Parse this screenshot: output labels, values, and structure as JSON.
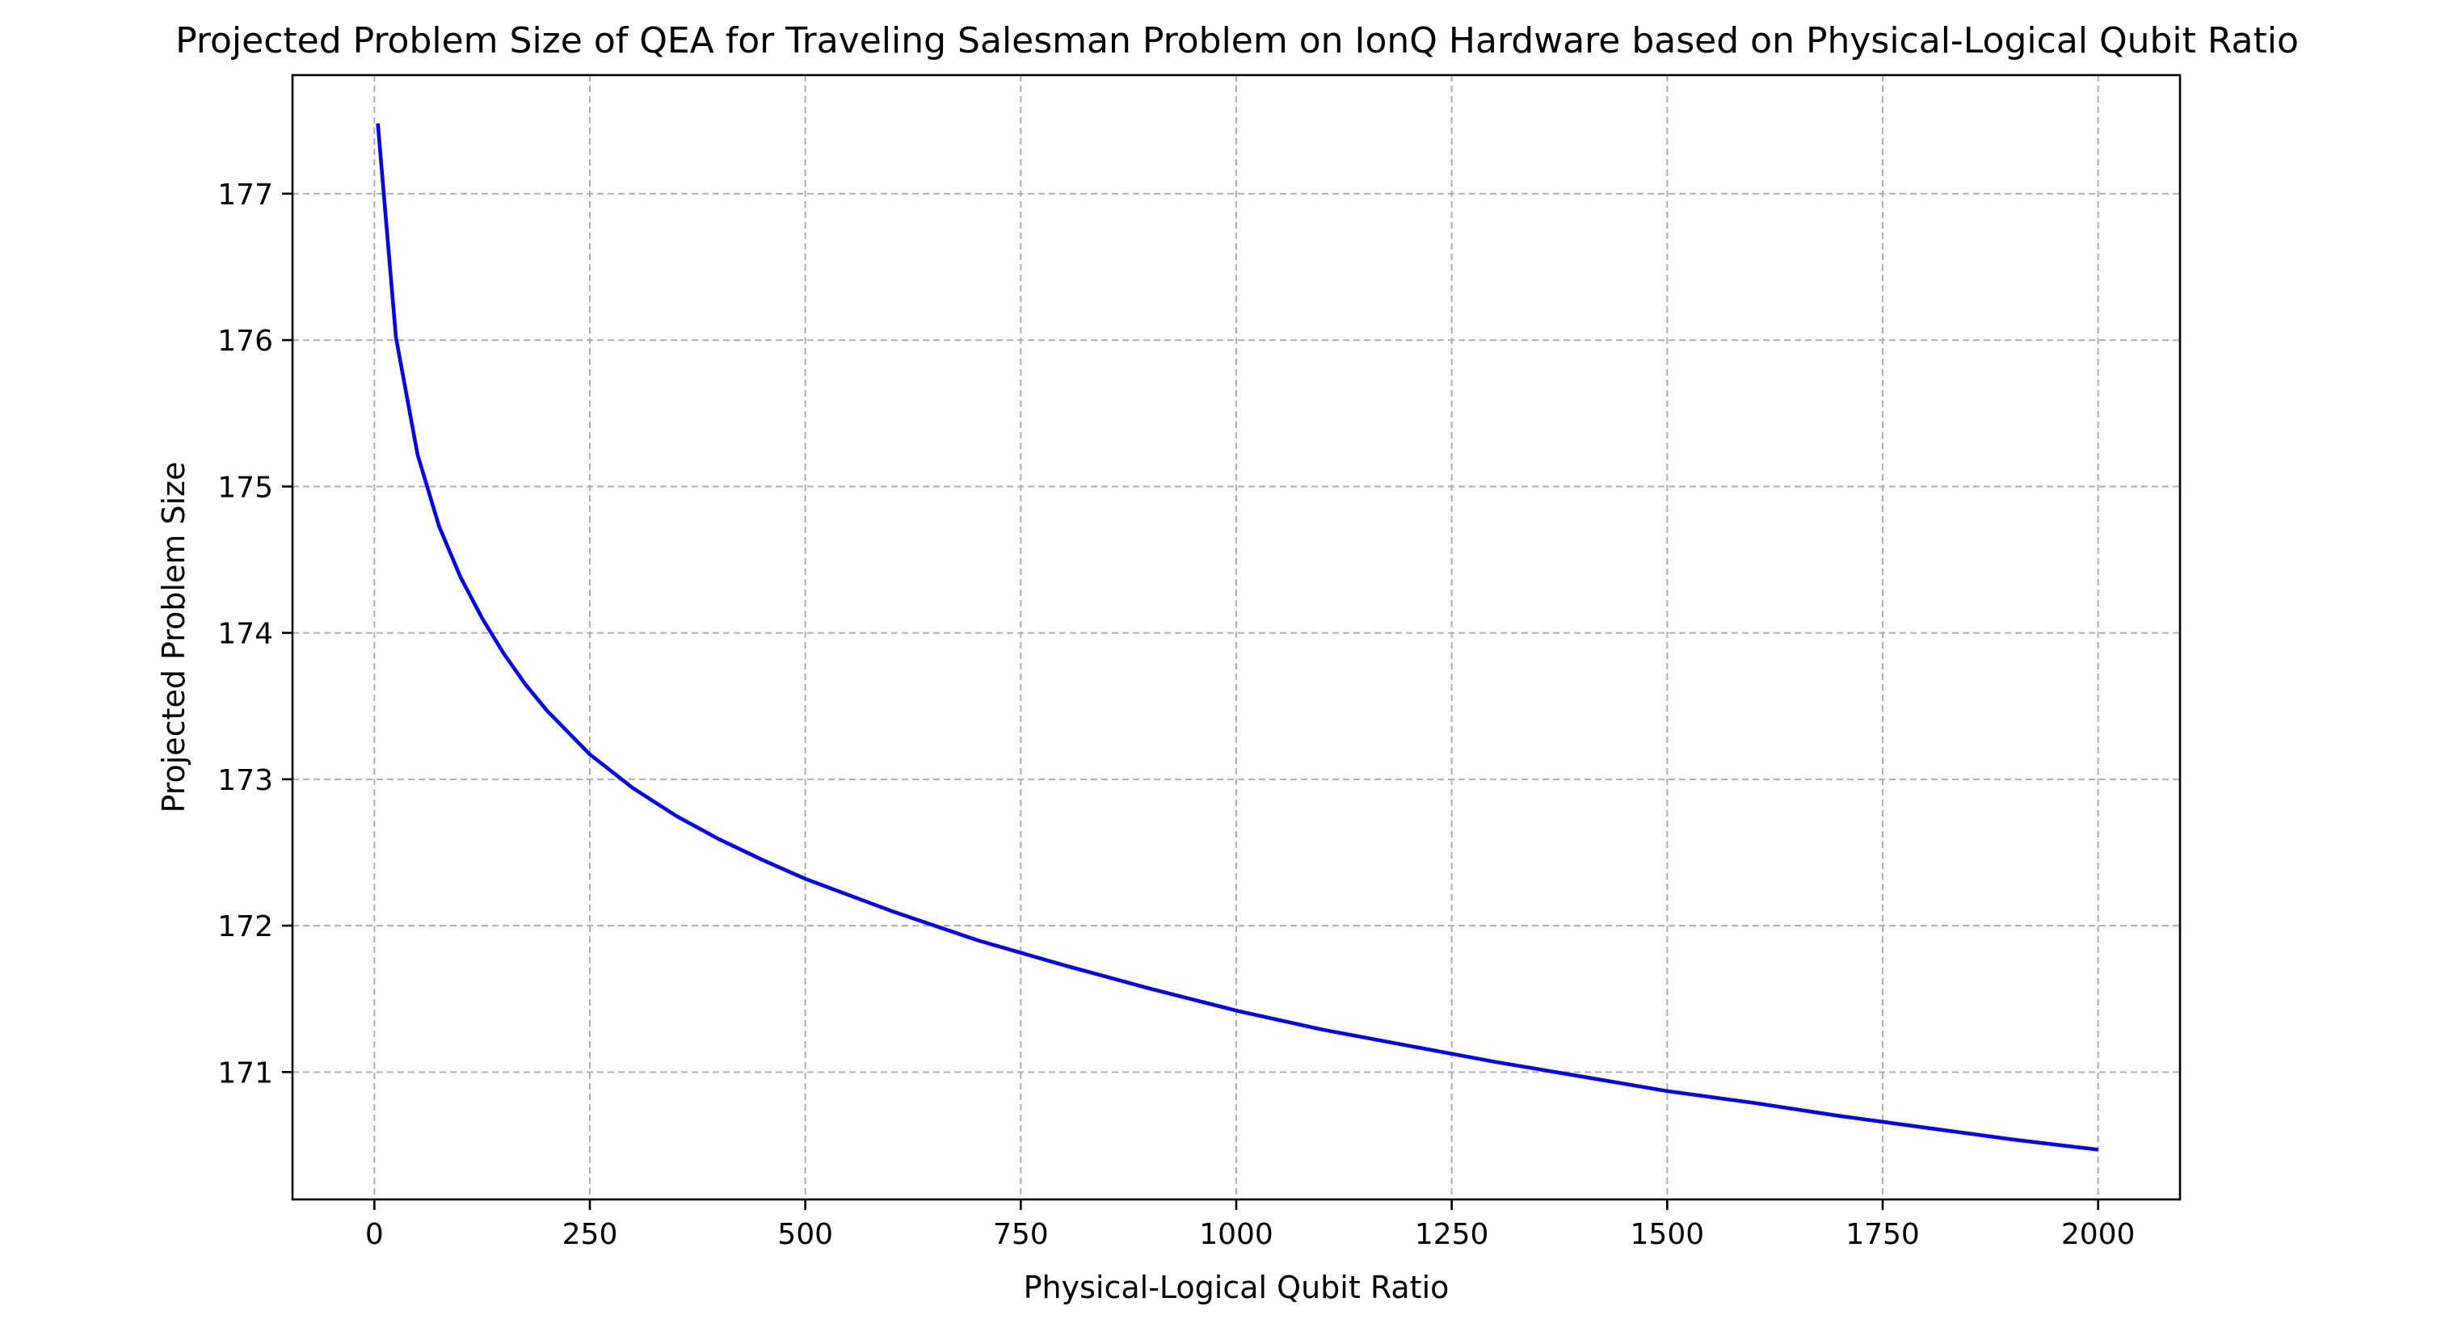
{
  "chart_data": {
    "type": "line",
    "title": "Projected Problem Size of QEA for Traveling Salesman Problem on IonQ Hardware based on Physical-Logical Qubit Ratio",
    "xlabel": "Physical-Logical Qubit Ratio",
    "ylabel": "Projected Problem Size",
    "xlim": [
      -95,
      2095
    ],
    "ylim": [
      170.13,
      177.81
    ],
    "x_ticks": [
      0,
      250,
      500,
      750,
      1000,
      1250,
      1500,
      1750,
      2000
    ],
    "y_ticks": [
      171,
      172,
      173,
      174,
      175,
      176,
      177
    ],
    "grid": true,
    "series": [
      {
        "color": "#0000ff",
        "x": [
          4,
          25,
          50,
          75,
          100,
          125,
          150,
          175,
          200,
          250,
          300,
          350,
          400,
          450,
          500,
          600,
          700,
          800,
          900,
          1000,
          1100,
          1200,
          1300,
          1400,
          1500,
          1600,
          1700,
          1800,
          1900,
          2000
        ],
        "y": [
          177.48,
          176.02,
          175.22,
          174.73,
          174.38,
          174.1,
          173.86,
          173.65,
          173.47,
          173.17,
          172.94,
          172.75,
          172.59,
          172.45,
          172.32,
          172.1,
          171.9,
          171.73,
          171.57,
          171.42,
          171.29,
          171.18,
          171.07,
          170.97,
          170.87,
          170.79,
          170.7,
          170.62,
          170.54,
          170.47
        ]
      }
    ]
  }
}
